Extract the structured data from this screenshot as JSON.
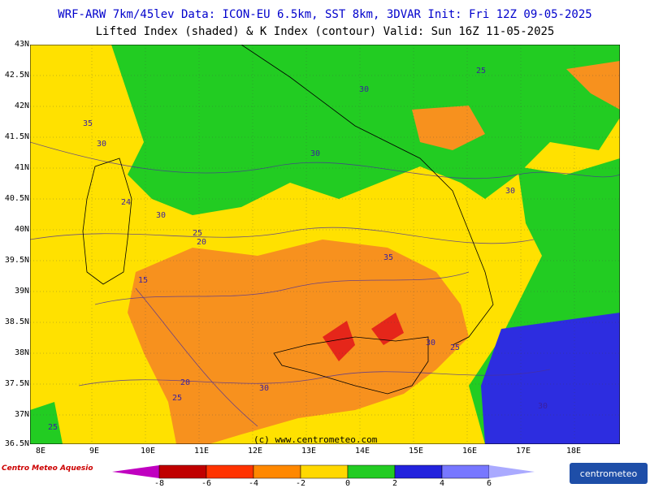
{
  "header": {
    "line1": "WRF-ARW 7km/45lev  Data: ICON-EU 6.5km, SST 8km, 3DVAR  Init: Fri 12Z 09-05-2025",
    "line2": "Lifted Index (shaded) & K Index (contour)  Valid: Sun 16Z 11-05-2025"
  },
  "latitudes": [
    "43N",
    "42.5N",
    "42N",
    "41.5N",
    "41N",
    "40.5N",
    "40N",
    "39.5N",
    "39N",
    "38.5N",
    "38N",
    "37.5N",
    "37N",
    "36.5N"
  ],
  "longitudes": [
    "8E",
    "9E",
    "10E",
    "11E",
    "12E",
    "13E",
    "14E",
    "15E",
    "16E",
    "17E",
    "18E"
  ],
  "contour_labels": [
    "25",
    "30",
    "35",
    "30",
    "30",
    "30",
    "24",
    "30",
    "25",
    "20",
    "15",
    "35",
    "30",
    "25",
    "20",
    "30",
    "25",
    "30",
    "25",
    "30"
  ],
  "copyright": "(c) www.centrometeo.com",
  "colorbar": {
    "ticks": [
      "-8",
      "-6",
      "-4",
      "-2",
      "0",
      "2",
      "4",
      "6"
    ],
    "colors": [
      "#c000c0",
      "#c00000",
      "#ff3300",
      "#ff8800",
      "#ffd800",
      "#22cc22",
      "#2222dd",
      "#7777ff",
      "#aaaaff"
    ]
  },
  "logos": {
    "left": "Centro Meteo Aquesio",
    "right": "centrometeo"
  },
  "palette": {
    "yellow": "#ffe100",
    "orange": "#f7911e",
    "green": "#22cc22",
    "blue": "#2d2de0",
    "lightblue": "#6e6eff",
    "red": "#e5261a"
  }
}
